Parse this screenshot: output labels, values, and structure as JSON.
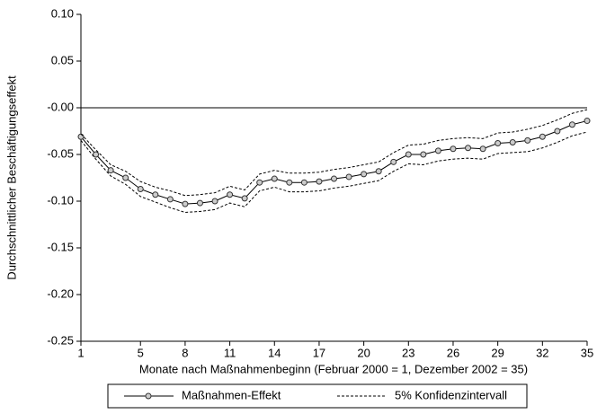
{
  "chart_data": {
    "type": "line",
    "x_label": "Monate nach Maßnahmenbeginn (Februar 2000 = 1, Dezember 2002 = 35)",
    "y_label": "Durchschnittlicher Beschäftigungseffekt",
    "x": [
      1,
      2,
      3,
      4,
      5,
      6,
      7,
      8,
      9,
      10,
      11,
      12,
      13,
      14,
      15,
      16,
      17,
      18,
      19,
      20,
      21,
      22,
      23,
      24,
      25,
      26,
      27,
      28,
      29,
      30,
      31,
      32,
      33,
      34,
      35
    ],
    "series": [
      {
        "name": "Maßnahmen-Effekt",
        "color": "#000000",
        "marker": true,
        "values": [
          -0.031,
          -0.05,
          -0.067,
          -0.075,
          -0.087,
          -0.093,
          -0.098,
          -0.103,
          -0.102,
          -0.1,
          -0.093,
          -0.097,
          -0.08,
          -0.076,
          -0.08,
          -0.08,
          -0.079,
          -0.076,
          -0.074,
          -0.071,
          -0.068,
          -0.058,
          -0.05,
          -0.05,
          -0.046,
          -0.044,
          -0.043,
          -0.044,
          -0.038,
          -0.037,
          -0.035,
          -0.031,
          -0.025,
          -0.018,
          -0.014
        ]
      },
      {
        "name": "5% Konfidenzintervall",
        "color": "#000000",
        "dashed": true,
        "values": [
          -0.028,
          -0.045,
          -0.061,
          -0.068,
          -0.079,
          -0.085,
          -0.089,
          -0.094,
          -0.093,
          -0.091,
          -0.084,
          -0.088,
          -0.071,
          -0.067,
          -0.07,
          -0.07,
          -0.069,
          -0.066,
          -0.064,
          -0.061,
          -0.058,
          -0.048,
          -0.04,
          -0.039,
          -0.035,
          -0.033,
          -0.032,
          -0.033,
          -0.027,
          -0.026,
          -0.023,
          -0.019,
          -0.013,
          -0.006,
          -0.002
        ],
        "lower": [
          -0.035,
          -0.055,
          -0.073,
          -0.082,
          -0.095,
          -0.101,
          -0.107,
          -0.112,
          -0.111,
          -0.109,
          -0.102,
          -0.106,
          -0.089,
          -0.085,
          -0.09,
          -0.09,
          -0.089,
          -0.086,
          -0.084,
          -0.081,
          -0.078,
          -0.068,
          -0.06,
          -0.061,
          -0.057,
          -0.055,
          -0.054,
          -0.055,
          -0.049,
          -0.048,
          -0.047,
          -0.043,
          -0.037,
          -0.03,
          -0.026
        ]
      }
    ],
    "xlim": [
      1,
      35
    ],
    "xticks": [
      1,
      5,
      8,
      11,
      14,
      17,
      20,
      23,
      26,
      29,
      32,
      35
    ],
    "ylim": [
      -0.25,
      0.1
    ],
    "yticks": [
      {
        "value": 0.1,
        "label": "0.10"
      },
      {
        "value": 0.05,
        "label": "0.05"
      },
      {
        "value": 0,
        "label": "-0.00"
      },
      {
        "value": -0.05,
        "label": "-0.05"
      },
      {
        "value": -0.1,
        "label": "-0.10"
      },
      {
        "value": -0.15,
        "label": "-0.15"
      },
      {
        "value": -0.2,
        "label": "-0.20"
      },
      {
        "value": -0.25,
        "label": "-0.25"
      }
    ],
    "hline": 0,
    "legend": "bottom"
  }
}
